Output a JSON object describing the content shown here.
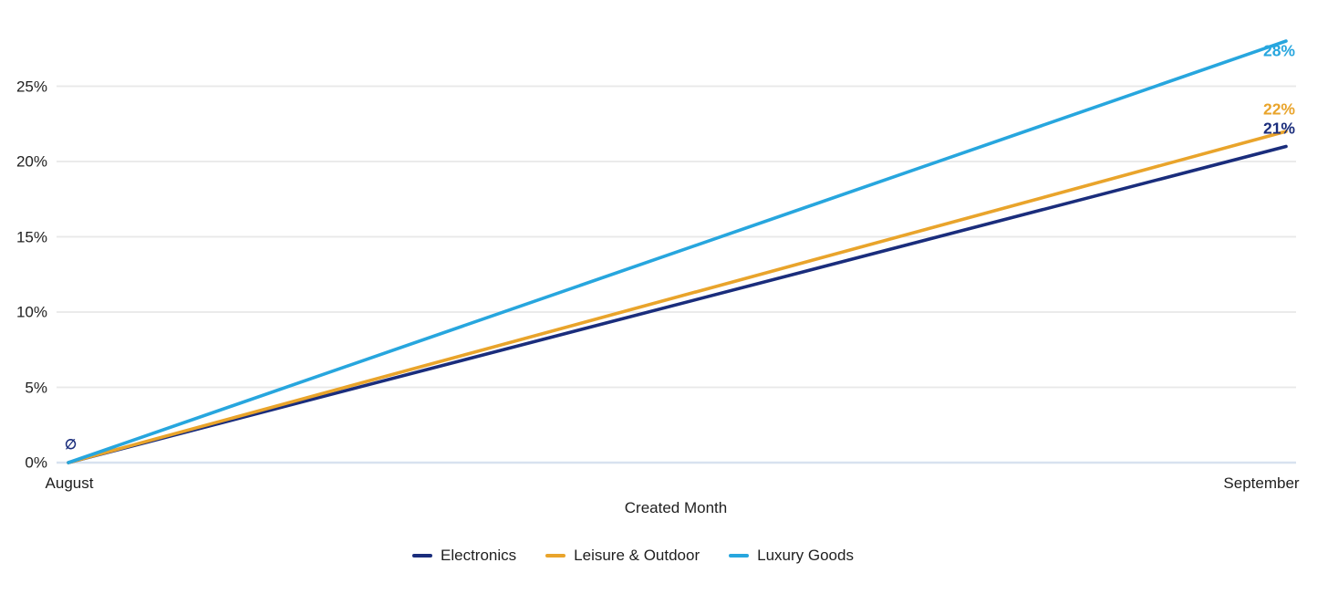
{
  "chart_data": {
    "type": "line",
    "title": "",
    "xlabel": "Created Month",
    "ylabel": "",
    "x_categories": [
      "August",
      "September"
    ],
    "y_ticks": [
      0,
      5,
      10,
      15,
      20,
      25
    ],
    "y_tick_labels": [
      "0%",
      "5%",
      "10%",
      "15%",
      "20%",
      "25%"
    ],
    "ylim": [
      0,
      28.5
    ],
    "grid": true,
    "legend_position": "bottom",
    "null_marker": "∅",
    "series": [
      {
        "name": "Electronics",
        "values": [
          0,
          21
        ],
        "end_label": "21%",
        "color": "#1A2D7C",
        "label_offset_y": -20
      },
      {
        "name": "Leisure & Outdoor",
        "values": [
          0,
          22
        ],
        "end_label": "22%",
        "color": "#E9A42B",
        "label_offset_y": -24
      },
      {
        "name": "Luxury Goods",
        "values": [
          0,
          28
        ],
        "end_label": "28%",
        "color": "#27A6DE",
        "label_offset_y": 11
      }
    ]
  },
  "colors": {
    "background": "#FFFFFF",
    "gridline": "#E8E8E8",
    "baseline": "#D8E2EF",
    "text": "#1F1F1F"
  }
}
